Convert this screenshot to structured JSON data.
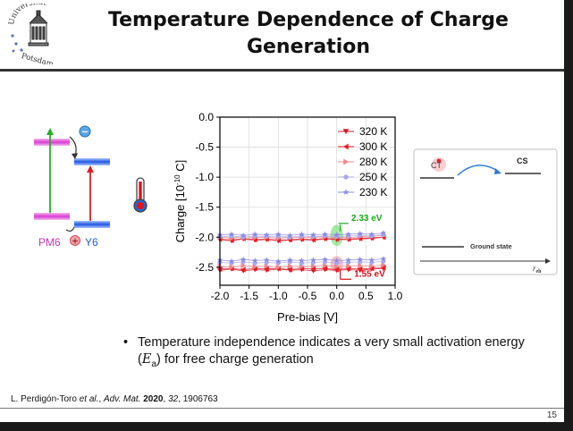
{
  "slide": {
    "title_line1": "Temperature Dependence of Charge",
    "title_line2": "Generation",
    "page_number": "15"
  },
  "logo": {
    "arc_text": "Universität",
    "bottom_text": "Potsdam"
  },
  "energy_diagram": {
    "donor_label": "PM6",
    "acceptor_label": "Y6",
    "minus_symbol": "−",
    "plus_symbol": "+"
  },
  "chart_data": {
    "type": "scatter",
    "xlabel": "Pre-bias [V]",
    "ylabel_main": "Charge [10",
    "ylabel_exp": "-10",
    "ylabel_unit": " C]",
    "xlim": [
      -2.0,
      1.0
    ],
    "ylim": [
      -2.8,
      0.0
    ],
    "x_ticks": [
      "-2.0",
      "-1.5",
      "-1.0",
      "-0.5",
      "0.0",
      "0.5",
      "1.0"
    ],
    "y_ticks": [
      "0.0",
      "-0.5",
      "-1.0",
      "-1.5",
      "-2.0",
      "-2.5"
    ],
    "grid": true,
    "legend_position": "top-right",
    "x": [
      -2.0,
      -1.8,
      -1.6,
      -1.4,
      -1.2,
      -1.0,
      -0.8,
      -0.6,
      -0.4,
      -0.2,
      0.0,
      0.2,
      0.4,
      0.6,
      0.8
    ],
    "series": [
      {
        "name": "320 K",
        "marker": "triangle-down",
        "color": "#d1182a",
        "high": [
          -2.04,
          -2.06,
          -2.03,
          -2.05,
          -2.04,
          -2.06,
          -2.05,
          -2.04,
          -2.05,
          -2.03,
          -2.04,
          -2.04,
          -2.03,
          -2.02,
          -2.0
        ],
        "low": [
          -2.55,
          -2.53,
          -2.56,
          -2.54,
          -2.55,
          -2.53,
          -2.55,
          -2.54,
          -2.56,
          -2.54,
          -2.55,
          -2.54,
          -2.55,
          -2.53,
          -2.52
        ]
      },
      {
        "name": "300 K",
        "marker": "triangle-left",
        "color": "#ea1c24",
        "high": [
          -2.03,
          -2.05,
          -2.02,
          -2.04,
          -2.03,
          -2.05,
          -2.04,
          -2.03,
          -2.04,
          -2.02,
          -2.03,
          -2.03,
          -2.02,
          -2.01,
          -2.0
        ],
        "low": [
          -2.53,
          -2.52,
          -2.54,
          -2.52,
          -2.53,
          -2.52,
          -2.54,
          -2.52,
          -2.53,
          -2.52,
          -2.54,
          -2.52,
          -2.53,
          -2.52,
          -2.51
        ]
      },
      {
        "name": "280 K",
        "marker": "triangle-right",
        "color": "#f2838a",
        "high": [
          -2.0,
          -2.02,
          -1.99,
          -2.01,
          -2.0,
          -2.02,
          -2.0,
          -2.01,
          -2.0,
          -1.99,
          -2.0,
          -2.01,
          -1.99,
          -1.98,
          -1.97
        ],
        "low": [
          -2.48,
          -2.5,
          -2.47,
          -2.49,
          -2.48,
          -2.5,
          -2.48,
          -2.49,
          -2.48,
          -2.47,
          -2.49,
          -2.48,
          -2.47,
          -2.48,
          -2.46
        ]
      },
      {
        "name": "250 K",
        "marker": "circle",
        "color": "#a9a9e8",
        "high": [
          -1.99,
          -1.98,
          -2.0,
          -1.98,
          -1.99,
          -1.98,
          -2.0,
          -1.98,
          -1.99,
          -1.98,
          -1.99,
          -1.98,
          -1.97,
          -1.98,
          -1.96
        ],
        "low": [
          -2.42,
          -2.43,
          -2.41,
          -2.43,
          -2.42,
          -2.43,
          -2.41,
          -2.43,
          -2.42,
          -2.41,
          -2.43,
          -2.42,
          -2.41,
          -2.42,
          -2.4
        ]
      },
      {
        "name": "230 K",
        "marker": "star",
        "color": "#8a8ce0",
        "high": [
          -1.96,
          -1.95,
          -1.97,
          -1.95,
          -1.96,
          -1.95,
          -1.97,
          -1.95,
          -1.96,
          -1.95,
          -1.96,
          -1.95,
          -1.94,
          -1.95,
          -1.93
        ],
        "low": [
          -2.38,
          -2.4,
          -2.37,
          -2.39,
          -2.38,
          -2.4,
          -2.38,
          -2.39,
          -2.38,
          -2.37,
          -2.39,
          -2.38,
          -2.37,
          -2.38,
          -2.36
        ]
      }
    ],
    "annotations": [
      {
        "text": "2.33 eV",
        "color": "#1aaa1a"
      },
      {
        "text": "1.55 eV",
        "color": "#d4141e"
      }
    ]
  },
  "inset": {
    "ct_label": "CT",
    "cs_label": "CS",
    "ground_label": "Ground state",
    "axis_label": "r",
    "axis_sub": "eh"
  },
  "bullet": {
    "symbol": "•",
    "text_before": "Temperature independence indicates a very small activation energy (",
    "var_main": "E",
    "var_sub": "a",
    "text_after": ") for free charge generation"
  },
  "reference": {
    "authors": "L. Perdigón-Toro ",
    "etal": "et al.",
    "sep1": ", ",
    "journal": "Adv. Mat.",
    "sep2": " ",
    "year": "2020",
    "sep3": ", ",
    "volume": "32",
    "rest": ", 1906763"
  }
}
